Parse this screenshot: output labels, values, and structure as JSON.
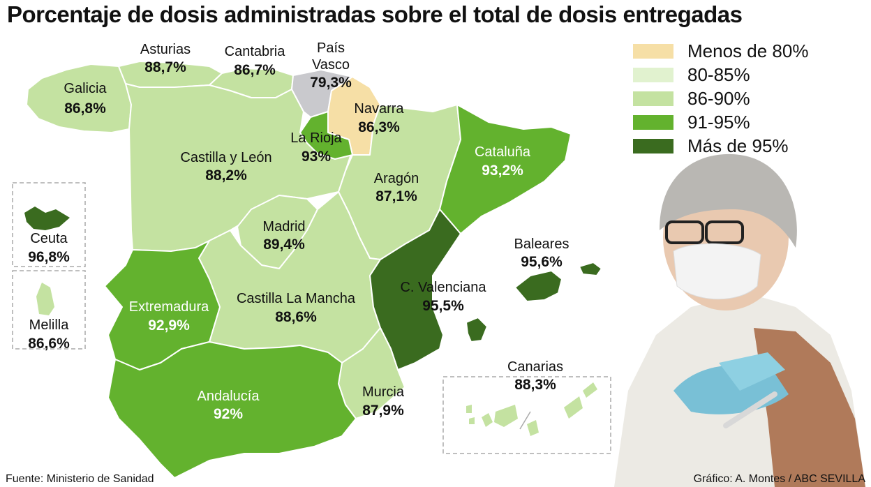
{
  "title": "Porcentaje de dosis administradas sobre el total de dosis entregadas",
  "legend": [
    {
      "label": "Menos de 80%",
      "color": "#f6dfa6"
    },
    {
      "label": "80-85%",
      "color": "#e1f2cf"
    },
    {
      "label": "86-90%",
      "color": "#c4e2a1"
    },
    {
      "label": "91-95%",
      "color": "#63b22e"
    },
    {
      "label": "Más de 95%",
      "color": "#3a6b1f"
    }
  ],
  "regions": {
    "galicia": {
      "name": "Galicia",
      "value": "86,8%"
    },
    "asturias": {
      "name": "Asturias",
      "value": "88,7%"
    },
    "cantabria": {
      "name": "Cantabria",
      "value": "86,7%"
    },
    "pais_vasco": {
      "name": "País Vasco",
      "name_line1": "País",
      "name_line2": "Vasco",
      "value": "79,3%"
    },
    "navarra": {
      "name": "Navarra",
      "value": "86,3%"
    },
    "la_rioja": {
      "name": "La Rioja",
      "value": "93%"
    },
    "castilla_leon": {
      "name": "Castilla y León",
      "value": "88,2%"
    },
    "aragon": {
      "name": "Aragón",
      "value": "87,1%"
    },
    "cataluna": {
      "name": "Cataluña",
      "value": "93,2%"
    },
    "madrid": {
      "name": "Madrid",
      "value": "89,4%"
    },
    "castilla_la_mancha": {
      "name": "Castilla La Mancha",
      "value": "88,6%"
    },
    "extremadura": {
      "name": "Extremadura",
      "value": "92,9%"
    },
    "c_valenciana": {
      "name": "C. Valenciana",
      "value": "95,5%"
    },
    "baleares": {
      "name": "Baleares",
      "value": "95,6%"
    },
    "andalucia": {
      "name": "Andalucía",
      "value": "92%"
    },
    "murcia": {
      "name": "Murcia",
      "value": "87,9%"
    },
    "canarias": {
      "name": "Canarias",
      "value": "88,3%"
    },
    "ceuta": {
      "name": "Ceuta",
      "value": "96,8%"
    },
    "melilla": {
      "name": "Melilla",
      "value": "86,6%"
    }
  },
  "colors": {
    "pais_vasco": "#c9c9cd",
    "menos_80": "#f6dfa6",
    "c86_90": "#c4e2a1",
    "c91_95": "#63b22e",
    "mas_95": "#3a6b1f",
    "border": "#ffffff"
  },
  "source": "Fuente: Ministerio de Sanidad",
  "credit": "Gráfico: A. Montes / ABC SEVILLA"
}
